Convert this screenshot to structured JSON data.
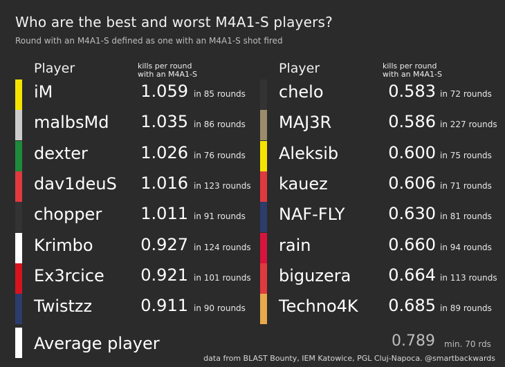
{
  "title": "Who are the best and worst M4A1-S players?",
  "subtitle": "Round with an M4A1-S defined as one with an M4A1-S shot fired",
  "columns": {
    "player": "Player",
    "metric_line1": "kills per round",
    "metric_line2": "with an M4A1-S"
  },
  "chart_data": {
    "type": "table",
    "title": "Who are the best and worst M4A1-S players?",
    "metric": "kills per round with an M4A1-S",
    "best": [
      {
        "player": "iM",
        "kpr": "1.059",
        "rounds": "in 85 rounds",
        "color": "#f5e400"
      },
      {
        "player": "malbsMd",
        "kpr": "1.035",
        "rounds": "in 86 rounds",
        "color": "#cccccc"
      },
      {
        "player": "dexter",
        "kpr": "1.026",
        "rounds": "in 76 rounds",
        "color": "#1e8a3c"
      },
      {
        "player": "dav1deuS",
        "kpr": "1.016",
        "rounds": "in 123 rounds",
        "color": "#e03a3e"
      },
      {
        "player": "chopper",
        "kpr": "1.011",
        "rounds": "in 91 rounds",
        "color": "#333333"
      },
      {
        "player": "Krimbo",
        "kpr": "0.927",
        "rounds": "in 124 rounds",
        "color": "#ffffff"
      },
      {
        "player": "Ex3rcice",
        "kpr": "0.921",
        "rounds": "in 101 rounds",
        "color": "#d6141e"
      },
      {
        "player": "Twistzz",
        "kpr": "0.911",
        "rounds": "in 90 rounds",
        "color": "#2c3c6b"
      }
    ],
    "worst": [
      {
        "player": "chelo",
        "kpr": "0.583",
        "rounds": "in 72 rounds",
        "color": "#333333"
      },
      {
        "player": "MAJ3R",
        "kpr": "0.586",
        "rounds": "in 227 rounds",
        "color": "#9c8c6c"
      },
      {
        "player": "Aleksib",
        "kpr": "0.600",
        "rounds": "in 75 rounds",
        "color": "#f5e400"
      },
      {
        "player": "kauez",
        "kpr": "0.606",
        "rounds": "in 71 rounds",
        "color": "#e03a3e"
      },
      {
        "player": "NAF-FLY",
        "kpr": "0.630",
        "rounds": "in 81 rounds",
        "color": "#2c3c6b"
      },
      {
        "player": "rain",
        "kpr": "0.660",
        "rounds": "in 94 rounds",
        "color": "#d6143c"
      },
      {
        "player": "biguzera",
        "kpr": "0.664",
        "rounds": "in 113 rounds",
        "color": "#e03a3e"
      },
      {
        "player": "Techno4K",
        "kpr": "0.685",
        "rounds": "in 89 rounds",
        "color": "#e8a84c"
      }
    ],
    "average": {
      "player": "Average player",
      "kpr": "0.789",
      "note": "min. 70 rds",
      "color": "#ffffff"
    }
  },
  "footer": "data from BLAST Bounty, IEM Katowice, PGL Cluj-Napoca. @smartbackwards"
}
